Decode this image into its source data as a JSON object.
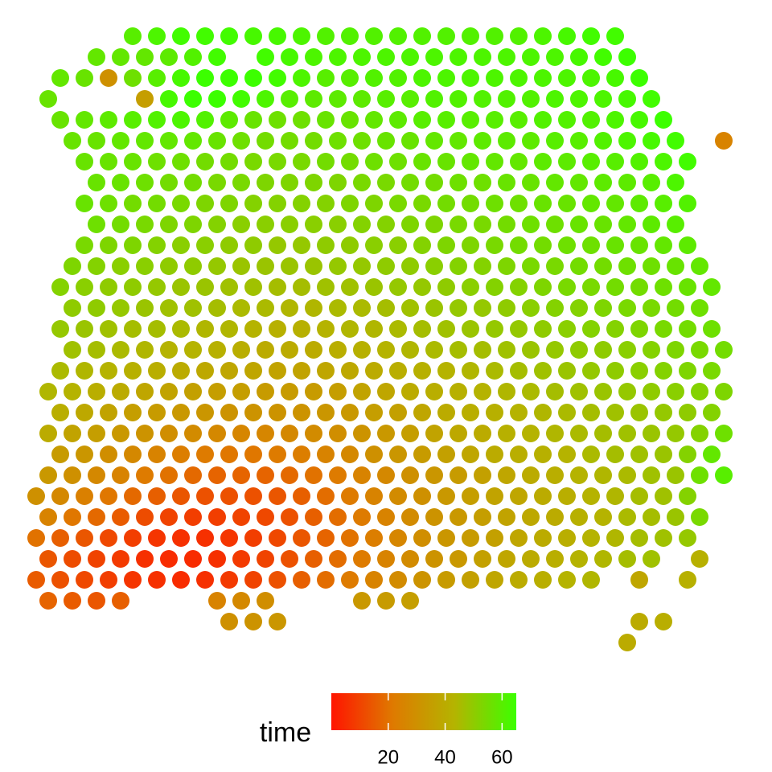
{
  "chart_data": {
    "type": "scatter",
    "color_label": "time",
    "clim": [
      0,
      65
    ],
    "colors": [
      "#ff1400",
      "#df7a00",
      "#b4b400",
      "#3cff00"
    ],
    "legend_ticks": [
      20,
      40,
      60
    ],
    "spots": [
      [
        null,
        null,
        null,
        null,
        60,
        62,
        64,
        64,
        64,
        63,
        63,
        62,
        61,
        61,
        61,
        61,
        61,
        61,
        61,
        61,
        61,
        62,
        63,
        64,
        64,
        null,
        null,
        null,
        null
      ],
      [
        null,
        null,
        58,
        58,
        58,
        59,
        61,
        64,
        null,
        64,
        63,
        62,
        62,
        62,
        62,
        62,
        62,
        62,
        62,
        62,
        62,
        62,
        63,
        64,
        65,
        null,
        null,
        null,
        null
      ],
      [
        null,
        58,
        57,
        30,
        56,
        60,
        63,
        65,
        65,
        65,
        64,
        62,
        60,
        60,
        61,
        61,
        62,
        62,
        62,
        62,
        62,
        62,
        62,
        62,
        63,
        65,
        null,
        null,
        null
      ],
      [
        57,
        null,
        null,
        null,
        35,
        63,
        65,
        65,
        64,
        62,
        60,
        59,
        59,
        59,
        60,
        60,
        61,
        61,
        61,
        61,
        61,
        62,
        62,
        62,
        63,
        64,
        null,
        null,
        null
      ],
      [
        null,
        57,
        58,
        59,
        60,
        61,
        62,
        61,
        59,
        57,
        56,
        56,
        57,
        57,
        58,
        59,
        60,
        60,
        60,
        60,
        60,
        61,
        61,
        61,
        62,
        63,
        65,
        null,
        null
      ],
      [
        null,
        57,
        57,
        58,
        58,
        58,
        58,
        57,
        56,
        55,
        55,
        55,
        56,
        56,
        57,
        57,
        58,
        58,
        59,
        59,
        59,
        60,
        60,
        61,
        62,
        63,
        64,
        null,
        25
      ],
      [
        null,
        null,
        57,
        57,
        57,
        56,
        56,
        55,
        55,
        54,
        54,
        54,
        55,
        55,
        56,
        56,
        57,
        57,
        58,
        58,
        58,
        59,
        59,
        60,
        60,
        61,
        62,
        64,
        null
      ],
      [
        null,
        null,
        57,
        57,
        56,
        55,
        55,
        54,
        54,
        53,
        53,
        53,
        53,
        54,
        54,
        55,
        55,
        56,
        56,
        57,
        57,
        58,
        58,
        59,
        59,
        60,
        62,
        null,
        null
      ],
      [
        null,
        null,
        57,
        56,
        55,
        55,
        54,
        53,
        53,
        52,
        52,
        52,
        52,
        53,
        53,
        54,
        54,
        55,
        55,
        56,
        56,
        57,
        57,
        58,
        58,
        59,
        60,
        61,
        null
      ],
      [
        null,
        null,
        56,
        55,
        54,
        53,
        53,
        52,
        51,
        51,
        51,
        51,
        51,
        52,
        52,
        53,
        53,
        54,
        54,
        55,
        56,
        56,
        57,
        57,
        58,
        59,
        60,
        null,
        null
      ],
      [
        null,
        null,
        54,
        53,
        53,
        52,
        51,
        51,
        50,
        50,
        49,
        49,
        50,
        50,
        51,
        51,
        52,
        53,
        53,
        54,
        55,
        55,
        56,
        56,
        57,
        57,
        58,
        59,
        null
      ],
      [
        null,
        53,
        52,
        51,
        51,
        50,
        50,
        49,
        48,
        48,
        48,
        48,
        49,
        49,
        50,
        50,
        51,
        52,
        52,
        53,
        54,
        54,
        55,
        55,
        56,
        56,
        57,
        58,
        null
      ],
      [
        null,
        52,
        51,
        50,
        50,
        49,
        48,
        48,
        47,
        47,
        46,
        46,
        47,
        47,
        48,
        49,
        49,
        50,
        51,
        52,
        52,
        53,
        54,
        54,
        55,
        55,
        56,
        57,
        58
      ],
      [
        null,
        50,
        50,
        49,
        48,
        47,
        47,
        46,
        45,
        45,
        44,
        44,
        45,
        45,
        46,
        47,
        48,
        49,
        49,
        50,
        51,
        52,
        52,
        53,
        54,
        54,
        55,
        56,
        null
      ],
      [
        null,
        49,
        48,
        47,
        46,
        46,
        45,
        44,
        44,
        43,
        42,
        42,
        43,
        44,
        44,
        45,
        46,
        47,
        48,
        49,
        49,
        50,
        51,
        52,
        52,
        53,
        54,
        55,
        56
      ],
      [
        null,
        47,
        46,
        45,
        44,
        43,
        43,
        42,
        41,
        40,
        40,
        40,
        41,
        42,
        43,
        44,
        45,
        46,
        46,
        47,
        48,
        49,
        50,
        50,
        51,
        52,
        53,
        54,
        55
      ],
      [
        null,
        45,
        44,
        43,
        42,
        41,
        40,
        39,
        38,
        38,
        37,
        37,
        38,
        39,
        40,
        41,
        42,
        43,
        44,
        45,
        46,
        47,
        48,
        49,
        50,
        51,
        52,
        53,
        54
      ],
      [
        44,
        43,
        41,
        40,
        38,
        37,
        36,
        35,
        35,
        34,
        34,
        34,
        35,
        37,
        38,
        40,
        41,
        42,
        43,
        44,
        45,
        46,
        47,
        48,
        49,
        50,
        51,
        52,
        53
      ],
      [
        null,
        41,
        39,
        37,
        35,
        34,
        33,
        32,
        31,
        31,
        31,
        31,
        32,
        33,
        35,
        36,
        38,
        40,
        41,
        42,
        43,
        44,
        45,
        46,
        47,
        48,
        49,
        50,
        52
      ],
      [
        40,
        37,
        35,
        33,
        31,
        29,
        28,
        27,
        26,
        26,
        27,
        28,
        29,
        31,
        33,
        35,
        37,
        39,
        40,
        42,
        43,
        44,
        45,
        46,
        47,
        48,
        49,
        52,
        56
      ],
      [
        null,
        34,
        32,
        29,
        27,
        25,
        23,
        22,
        21,
        21,
        22,
        23,
        25,
        27,
        30,
        32,
        34,
        36,
        38,
        40,
        41,
        42,
        43,
        45,
        46,
        47,
        48,
        52,
        58
      ],
      [
        33,
        30,
        27,
        25,
        22,
        20,
        18,
        17,
        17,
        17,
        18,
        20,
        22,
        25,
        27,
        30,
        32,
        34,
        36,
        38,
        40,
        41,
        43,
        44,
        45,
        47,
        48,
        56,
        60
      ],
      [
        30,
        27,
        24,
        21,
        18,
        16,
        14,
        13,
        13,
        13,
        14,
        16,
        19,
        22,
        25,
        28,
        30,
        33,
        35,
        37,
        38,
        40,
        41,
        43,
        44,
        46,
        47,
        52,
        null
      ],
      [
        25,
        21,
        18,
        15,
        12,
        10,
        9,
        9,
        10,
        11,
        13,
        16,
        19,
        22,
        25,
        28,
        31,
        33,
        35,
        37,
        39,
        40,
        42,
        43,
        45,
        46,
        48,
        54,
        null
      ],
      [
        20,
        16,
        14,
        11,
        9,
        7,
        6,
        6,
        7,
        9,
        11,
        14,
        17,
        20,
        23,
        26,
        29,
        32,
        34,
        36,
        38,
        40,
        41,
        43,
        44,
        46,
        47,
        49,
        null
      ],
      [
        14,
        12,
        10,
        8,
        6,
        5,
        5,
        6,
        8,
        10,
        13,
        16,
        19,
        22,
        25,
        28,
        31,
        33,
        36,
        38,
        40,
        41,
        43,
        44,
        46,
        47,
        null,
        42,
        null
      ],
      [
        15,
        13,
        11,
        9,
        7,
        6,
        5,
        6,
        8,
        10,
        13,
        16,
        19,
        22,
        25,
        28,
        31,
        34,
        36,
        38,
        40,
        41,
        43,
        44,
        null,
        38,
        null,
        42,
        null
      ],
      [
        17,
        15,
        14,
        16,
        null,
        null,
        null,
        25,
        27,
        29,
        null,
        null,
        null,
        33,
        34,
        35,
        null,
        null,
        null,
        null,
        null,
        null,
        null,
        null,
        null,
        null,
        null,
        null,
        null
      ],
      [
        null,
        null,
        null,
        null,
        null,
        null,
        null,
        null,
        30,
        31,
        32,
        null,
        null,
        null,
        null,
        null,
        null,
        null,
        null,
        null,
        null,
        null,
        null,
        null,
        null,
        40,
        41,
        null,
        null
      ],
      [
        null,
        null,
        null,
        null,
        null,
        null,
        null,
        null,
        null,
        null,
        null,
        null,
        null,
        null,
        null,
        null,
        null,
        null,
        null,
        null,
        null,
        null,
        null,
        null,
        40,
        null,
        null,
        null,
        null
      ]
    ]
  }
}
